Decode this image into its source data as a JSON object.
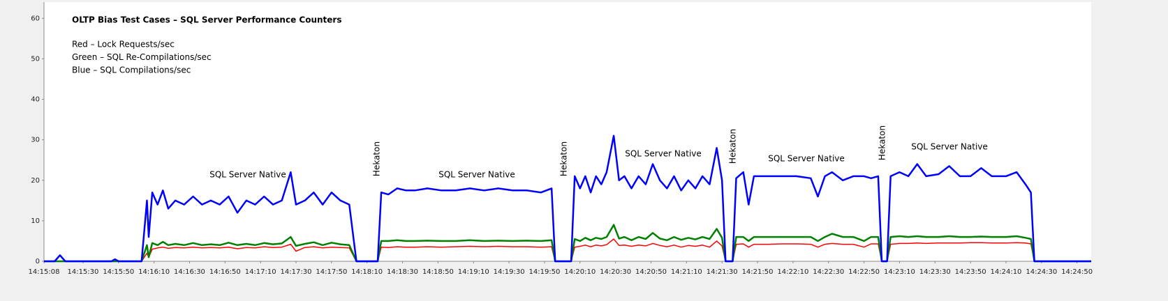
{
  "chart_data": {
    "type": "line",
    "title": "OLTP Bias Test Cases – SQL Server  Performance Counters",
    "x": [
      "14:15:08",
      "14:15:14",
      "14:15:17",
      "14:15:20",
      "14:15:46",
      "14:15:48",
      "14:15:50",
      "14:16:03",
      "14:16:06",
      "14:16:07",
      "14:16:09",
      "14:16:12",
      "14:16:15",
      "14:16:18",
      "14:16:22",
      "14:16:27",
      "14:16:32",
      "14:16:37",
      "14:16:42",
      "14:16:47",
      "14:16:52",
      "14:16:57",
      "14:17:02",
      "14:17:07",
      "14:17:12",
      "14:17:17",
      "14:17:22",
      "14:17:27",
      "14:17:30",
      "14:17:35",
      "14:17:40",
      "14:17:45",
      "14:17:50",
      "14:17:55",
      "14:18:00",
      "14:18:04",
      "14:18:16",
      "14:18:18",
      "14:18:22",
      "14:18:27",
      "14:18:32",
      "14:18:37",
      "14:18:44",
      "14:18:52",
      "14:19:00",
      "14:19:08",
      "14:19:16",
      "14:19:24",
      "14:19:32",
      "14:19:40",
      "14:19:48",
      "14:19:54",
      "14:19:56",
      "14:20:05",
      "14:20:07",
      "14:20:10",
      "14:20:13",
      "14:20:16",
      "14:20:19",
      "14:20:22",
      "14:20:25",
      "14:20:29",
      "14:20:32",
      "14:20:35",
      "14:20:39",
      "14:20:43",
      "14:20:47",
      "14:20:51",
      "14:20:55",
      "14:20:59",
      "14:21:03",
      "14:21:07",
      "14:21:11",
      "14:21:15",
      "14:21:19",
      "14:21:23",
      "14:21:27",
      "14:21:30",
      "14:21:32",
      "14:21:36",
      "14:21:38",
      "14:21:42",
      "14:21:45",
      "14:21:48",
      "14:21:56",
      "14:22:04",
      "14:22:12",
      "14:22:20",
      "14:22:24",
      "14:22:28",
      "14:22:32",
      "14:22:38",
      "14:22:44",
      "14:22:50",
      "14:22:54",
      "14:22:58",
      "14:23:00",
      "14:23:03",
      "14:23:05",
      "14:23:10",
      "14:23:15",
      "14:23:20",
      "14:23:25",
      "14:23:32",
      "14:23:38",
      "14:23:44",
      "14:23:50",
      "14:23:56",
      "14:24:02",
      "14:24:10",
      "14:24:16",
      "14:24:21",
      "14:24:24",
      "14:24:26",
      "14:24:58"
    ],
    "series": [
      {
        "name": "Red – Lock Requests/sec",
        "color": "#ff0000",
        "width": 1.5,
        "values": [
          0,
          0,
          0,
          0,
          0,
          0,
          0,
          0,
          2,
          1,
          3,
          3.3,
          3.5,
          3.2,
          3.4,
          3.3,
          3.5,
          3.3,
          3.4,
          3.3,
          3.5,
          3.1,
          3.4,
          3.3,
          3.6,
          3.4,
          3.5,
          4.2,
          2.5,
          3.4,
          3.6,
          3.3,
          3.5,
          3.4,
          3.3,
          0,
          0,
          3.5,
          3.4,
          3.6,
          3.5,
          3.5,
          3.6,
          3.5,
          3.6,
          3.7,
          3.6,
          3.7,
          3.6,
          3.6,
          3.5,
          3.6,
          0,
          0,
          3.5,
          3.7,
          4,
          3.6,
          4,
          3.8,
          4.1,
          5.5,
          3.9,
          4,
          3.7,
          4,
          3.8,
          4.4,
          3.9,
          3.6,
          4,
          3.5,
          3.9,
          3.7,
          4,
          3.5,
          5,
          3.8,
          0,
          0,
          4.2,
          4.3,
          3.5,
          4.2,
          4.2,
          4.3,
          4.3,
          4.2,
          3.5,
          4.2,
          4.4,
          4.2,
          4.2,
          3.5,
          4.3,
          4.3,
          0,
          0,
          4.2,
          4.4,
          4.4,
          4.5,
          4.4,
          4.5,
          4.5,
          4.5,
          4.6,
          4.6,
          4.5,
          4.5,
          4.6,
          4.5,
          4.3,
          0,
          0
        ]
      },
      {
        "name": "Green – SQL Re-Compilations/sec",
        "color": "#008000",
        "width": 2.5,
        "values": [
          0,
          0,
          0,
          0,
          0,
          0,
          0,
          0,
          4,
          1,
          4.5,
          4,
          4.8,
          4,
          4.3,
          4,
          4.5,
          4,
          4.2,
          4,
          4.6,
          4,
          4.3,
          4,
          4.5,
          4.2,
          4.4,
          6,
          3.8,
          4.3,
          4.7,
          4,
          4.6,
          4.2,
          4,
          0,
          0,
          5,
          5,
          5.2,
          5,
          5,
          5.1,
          5,
          5,
          5.2,
          5,
          5.1,
          5,
          5.1,
          5,
          5.2,
          0,
          0,
          5.5,
          5,
          5.8,
          5.2,
          5.8,
          5.5,
          6,
          9,
          5.6,
          6,
          5.2,
          6,
          5.5,
          7,
          5.6,
          5.2,
          6,
          5.3,
          5.8,
          5.4,
          6,
          5.5,
          8,
          5.8,
          0,
          0,
          6,
          6,
          5,
          6,
          6,
          6,
          6,
          6,
          5,
          6,
          6.8,
          6,
          6,
          5,
          6,
          6,
          0,
          0,
          6,
          6.2,
          6,
          6.2,
          6,
          6,
          6.2,
          6,
          6,
          6.1,
          6,
          6,
          6.2,
          5.8,
          5.5,
          0,
          0
        ]
      },
      {
        "name": "Blue – SQL Compilations/sec",
        "color": "#0000ff",
        "width": 2.5,
        "values": [
          0,
          0,
          1.5,
          0,
          0,
          0.5,
          0,
          0,
          15,
          6,
          17,
          14,
          17.5,
          13,
          15,
          14,
          16,
          14,
          15,
          14,
          16,
          12,
          15,
          14,
          16,
          14,
          15,
          22,
          14,
          15,
          17,
          14,
          17,
          15,
          14,
          0,
          0,
          17,
          16.5,
          18,
          17.5,
          17.5,
          18,
          17.5,
          17.5,
          18,
          17.5,
          18,
          17.5,
          17.5,
          17,
          18,
          0,
          0,
          21,
          18,
          21,
          17,
          21,
          19,
          22,
          31,
          20,
          21,
          18,
          21,
          19,
          24,
          20,
          18,
          21,
          17.5,
          20,
          18,
          21,
          19,
          28,
          20,
          0,
          0,
          20.5,
          22,
          14,
          21,
          21,
          21,
          21,
          20.5,
          16,
          21,
          22,
          20,
          21,
          21,
          20.5,
          21,
          0,
          0,
          21,
          22,
          21,
          24,
          21,
          21.5,
          23.5,
          21,
          21,
          23,
          21,
          21,
          22,
          19,
          17,
          0,
          0
        ]
      }
    ],
    "xlim": [
      "14:15:08",
      "14:24:58"
    ],
    "xticks": [
      "14:15:08",
      "14:15:30",
      "14:15:50",
      "14:16:10",
      "14:16:30",
      "14:16:50",
      "14:17:10",
      "14:17:30",
      "14:17:50",
      "14:18:10",
      "14:18:30",
      "14:18:50",
      "14:19:10",
      "14:19:30",
      "14:19:50",
      "14:20:10",
      "14:20:30",
      "14:20:50",
      "14:21:10",
      "14:21:30",
      "14:21:50",
      "14:22:10",
      "14:22:30",
      "14:22:50",
      "14:23:10",
      "14:23:30",
      "14:23:50",
      "14:24:10",
      "14:24:30",
      "14:24:50"
    ],
    "ylim": [
      0,
      64
    ],
    "yticks": [
      0,
      10,
      20,
      30,
      40,
      50,
      60
    ],
    "annotations": [
      "SQL Server Native",
      "Hekaton",
      "SQL Server Native",
      "Hekaton",
      "SQL Server Native",
      "Hekaton",
      "SQL Server Native",
      "Hekaton",
      "SQL Server Native"
    ]
  }
}
